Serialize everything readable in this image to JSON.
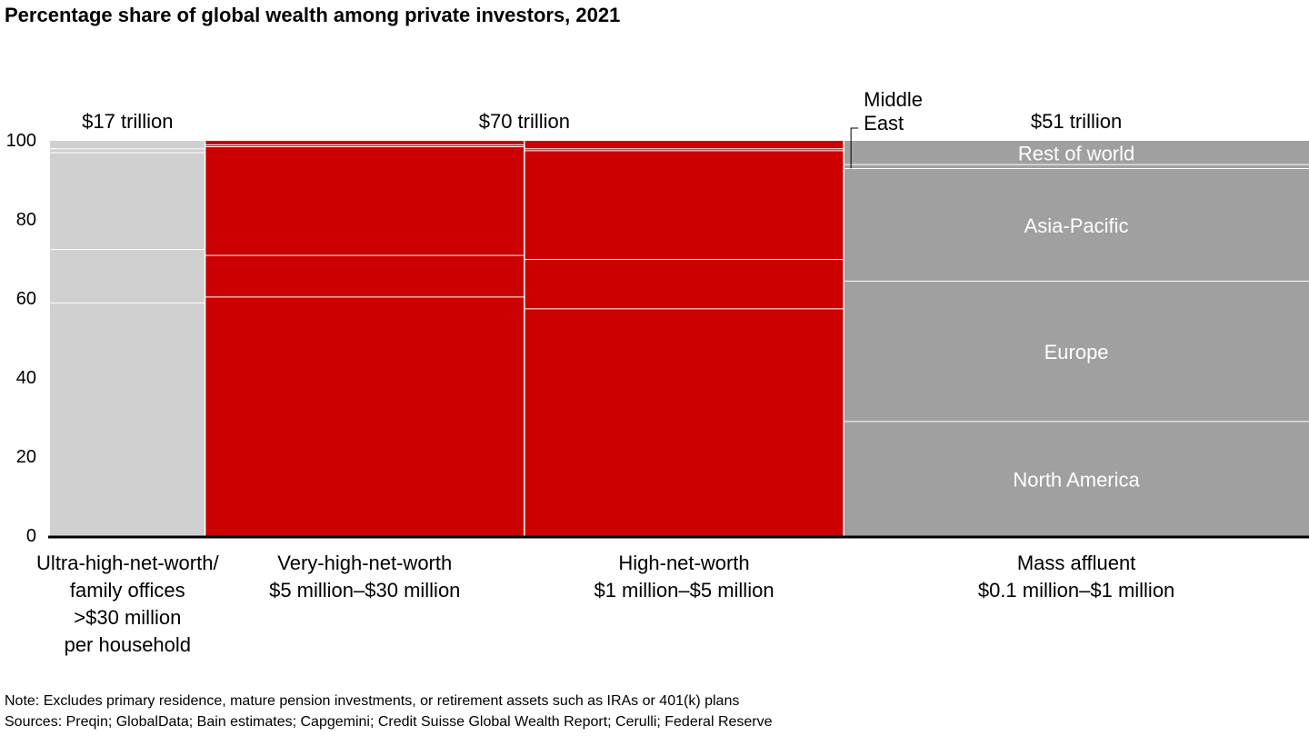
{
  "title": "Percentage share of global wealth among private investors, 2021",
  "note": "Note: Excludes primary residence, mature pension investments, or retirement assets such as IRAs or 401(k) plans",
  "sources": "Sources: Preqin; GlobalData; Bain estimates; Capgemini; Credit Suisse Global Wealth Report; Cerulli; Federal Reserve",
  "colors": {
    "uhnw": "#d0d0d0",
    "red": "#cc0000",
    "mass_affluent": "#a0a0a0",
    "divider": "#ffffff",
    "axis": "#000000"
  },
  "chart_data": {
    "type": "mekko",
    "y_axis": {
      "ticks": [
        0,
        20,
        40,
        60,
        80,
        100
      ],
      "ylim": [
        0,
        100
      ]
    },
    "column_widths_trillions": [
      17,
      35,
      35,
      51
    ],
    "group_totals": [
      {
        "label": "$17 trillion",
        "columns": [
          0
        ]
      },
      {
        "label": "$70 trillion",
        "columns": [
          1,
          2
        ]
      },
      {
        "label": "$51 trillion",
        "columns": [
          3
        ]
      }
    ],
    "columns": [
      {
        "label_lines": [
          "Ultra-high-net-worth/",
          "family offices",
          ">$30 million",
          "per household"
        ],
        "color": "uhnw",
        "segments": [
          {
            "name": "North America",
            "value": 59
          },
          {
            "name": "Europe",
            "value": 13.5
          },
          {
            "name": "Asia-Pacific",
            "value": 24.5
          },
          {
            "name": "Middle East",
            "value": 1
          },
          {
            "name": "Rest of world",
            "value": 2
          }
        ]
      },
      {
        "label_lines": [
          "Very-high-net-worth",
          "$5 million–$30 million"
        ],
        "color": "red",
        "segments": [
          {
            "name": "North America",
            "value": 60.5
          },
          {
            "name": "Europe",
            "value": 10.5
          },
          {
            "name": "Asia-Pacific",
            "value": 27.5
          },
          {
            "name": "Middle East",
            "value": 0.5
          },
          {
            "name": "Rest of world",
            "value": 1
          }
        ]
      },
      {
        "label_lines": [
          "High-net-worth",
          "$1 million–$5 million"
        ],
        "color": "red",
        "segments": [
          {
            "name": "North America",
            "value": 57.5
          },
          {
            "name": "Europe",
            "value": 12.5
          },
          {
            "name": "Asia-Pacific",
            "value": 27.5
          },
          {
            "name": "Middle East",
            "value": 0.5
          },
          {
            "name": "Rest of world",
            "value": 2
          }
        ]
      },
      {
        "label_lines": [
          "Mass affluent",
          "$0.1 million–$1 million"
        ],
        "color": "mass_affluent",
        "segments": [
          {
            "name": "North America",
            "value": 29,
            "label": "North America"
          },
          {
            "name": "Europe",
            "value": 35.5,
            "label": "Europe"
          },
          {
            "name": "Asia-Pacific",
            "value": 28.5,
            "label": "Asia-Pacific"
          },
          {
            "name": "Middle East",
            "value": 1
          },
          {
            "name": "Rest of world",
            "value": 6,
            "label": "Rest of world"
          }
        ]
      }
    ],
    "callout": {
      "lines": [
        "Middle",
        "East"
      ],
      "column": 3,
      "segment": 3
    }
  }
}
